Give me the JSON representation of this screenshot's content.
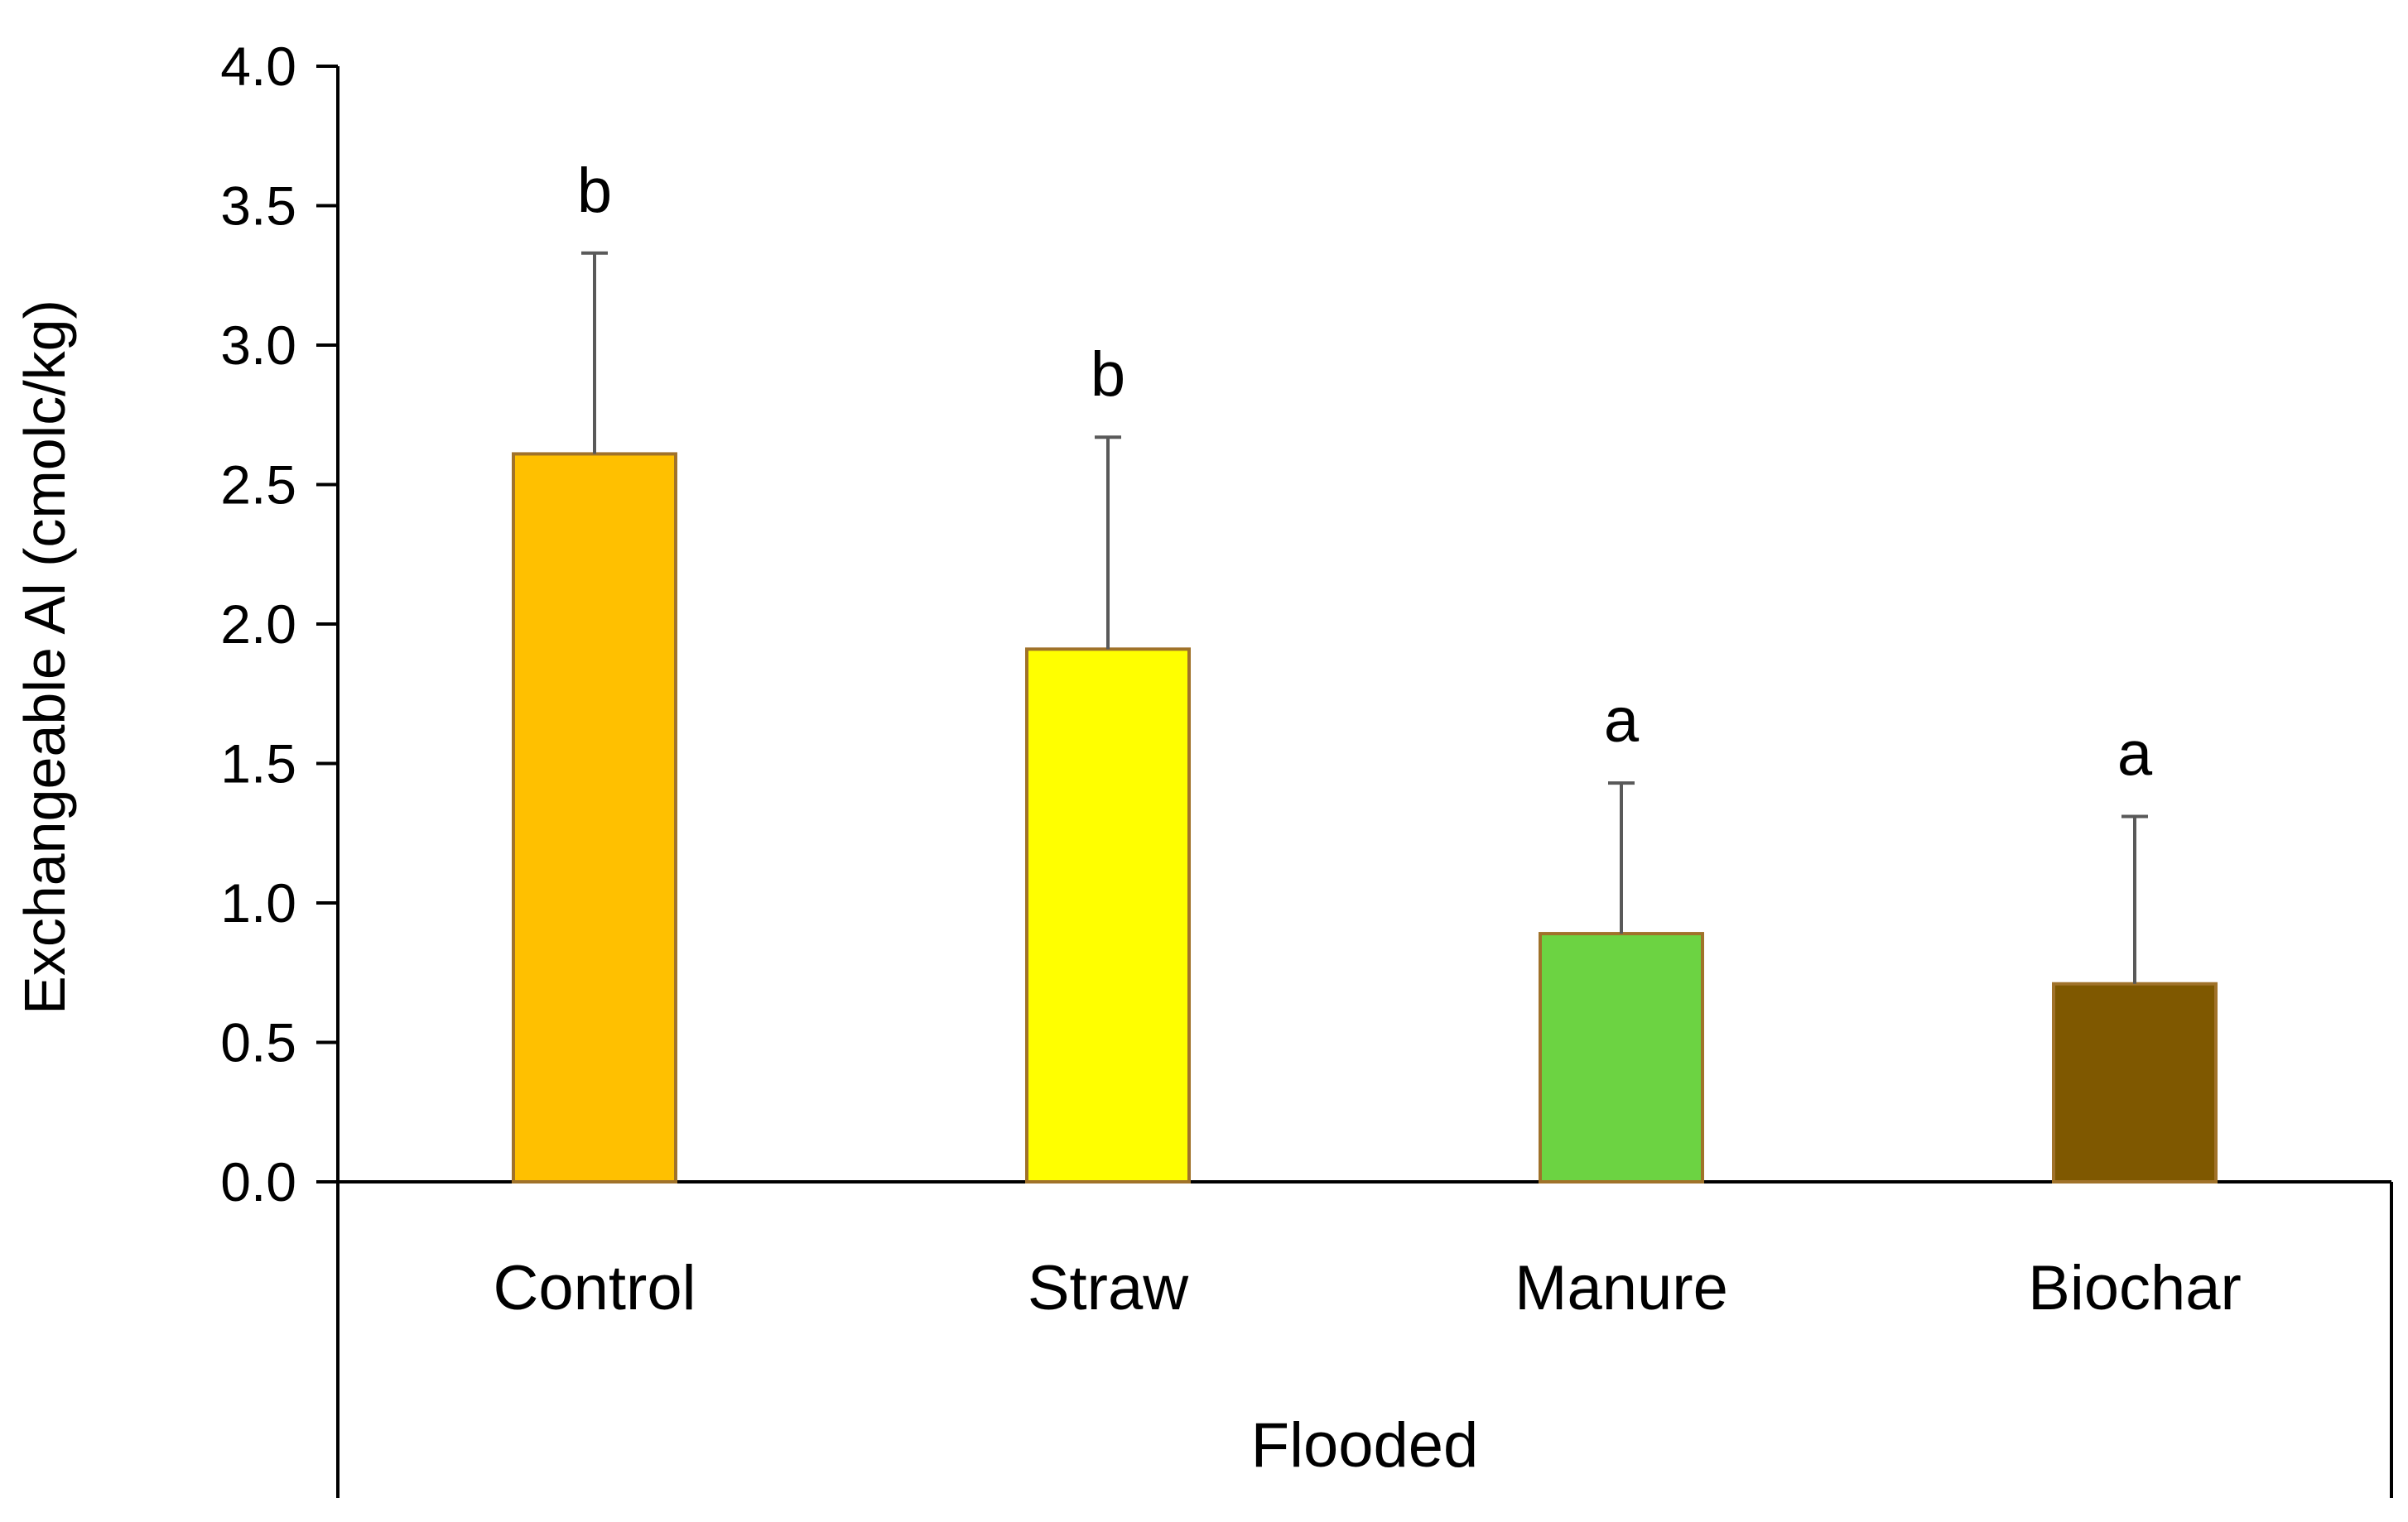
{
  "chart_data": {
    "type": "bar",
    "title": "",
    "ylabel": "Exchangeable  Al (cmolc/kg)",
    "xlabel": "",
    "group_label": "Flooded",
    "ylim": [
      0,
      4.0
    ],
    "ytick_step": 0.5,
    "ytick_labels": [
      "0.0",
      "0.5",
      "1.0",
      "1.5",
      "2.0",
      "2.5",
      "3.0",
      "3.5",
      "4.0"
    ],
    "categories": [
      "Control",
      "Straw",
      "Manure",
      "Biochar"
    ],
    "values": [
      2.61,
      1.91,
      0.89,
      0.71
    ],
    "errors": [
      0.72,
      0.76,
      0.54,
      0.6
    ],
    "significance": [
      "b",
      "b",
      "a",
      "a"
    ],
    "bar_colors": [
      "#FFC000",
      "#FFFF00",
      "#6CD342",
      "#7F5800"
    ],
    "bar_edge_color": "#A0722A",
    "errorbar_color": "#595959",
    "grid": false
  }
}
